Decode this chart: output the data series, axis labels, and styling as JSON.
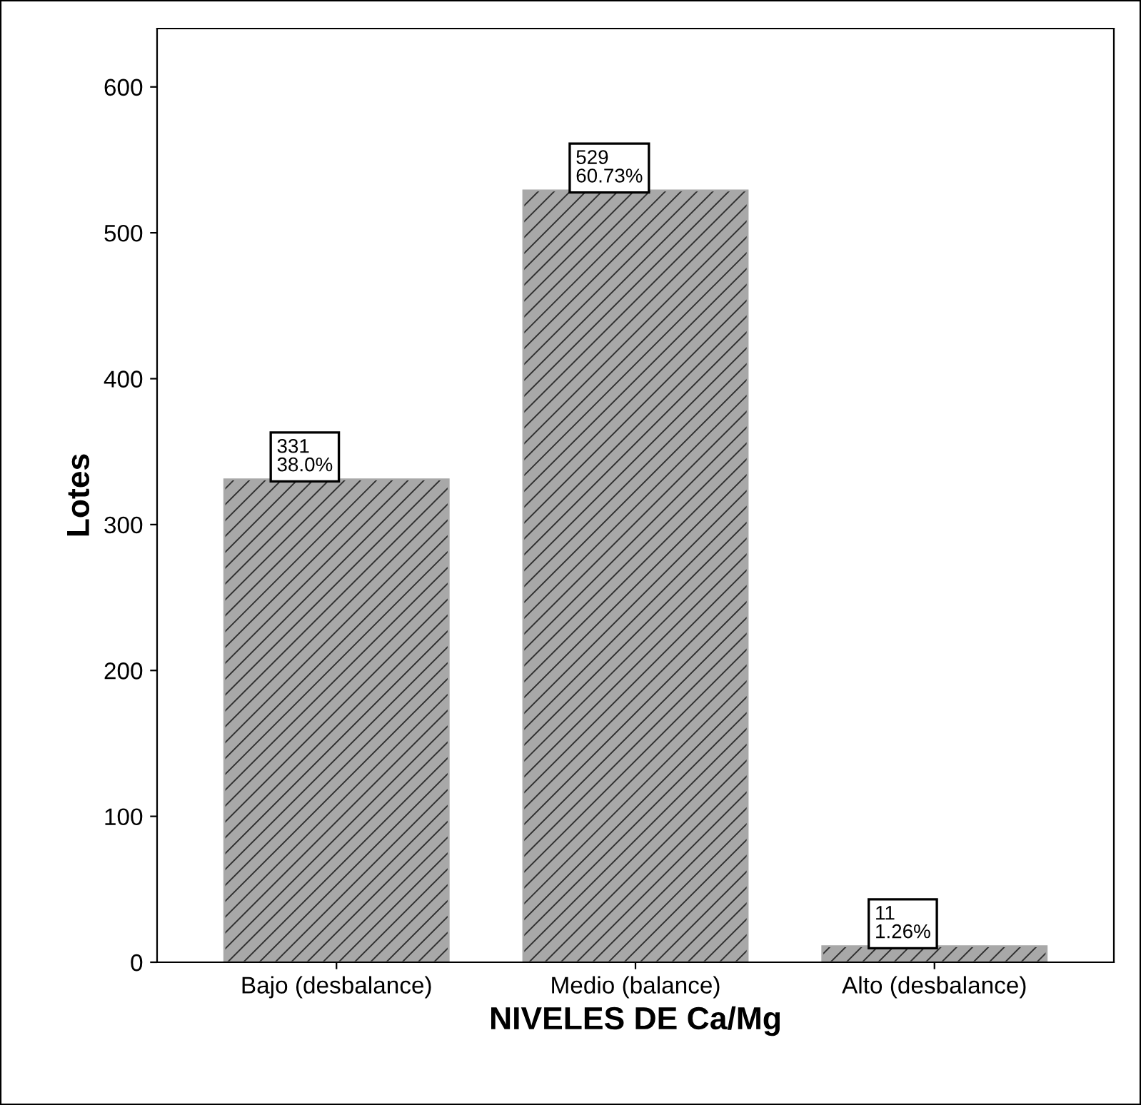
{
  "chart_data": {
    "type": "bar",
    "xlabel": "NIVELES DE Ca/Mg",
    "ylabel": "Lotes",
    "categories": [
      "Bajo (desbalance)",
      "Medio (balance)",
      "Alto (desbalance)"
    ],
    "values": [
      331,
      529,
      11
    ],
    "value_labels": [
      "331\n38.0%",
      "529\n60.73%",
      "11\n1.26%"
    ],
    "color": "#a8a8a8",
    "ylim": [
      0,
      640
    ],
    "yticks": [
      0,
      100,
      200,
      300,
      400,
      500,
      600
    ],
    "grid": false
  }
}
